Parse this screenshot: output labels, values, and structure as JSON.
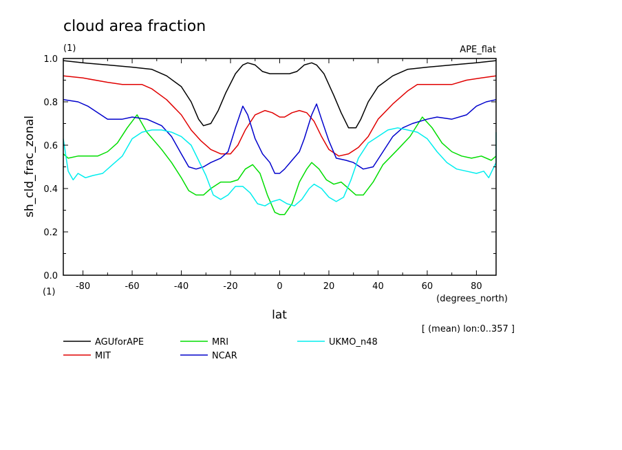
{
  "chart_data": {
    "type": "line",
    "title": "cloud area fraction",
    "units": "(1)",
    "experiment": "APE_flat",
    "xlabel": "lat",
    "xunits": "(degrees_north)",
    "ylabel": "sh_cld_frac_zonal",
    "yunits": "(1)",
    "note": "[ (mean) lon:0..357 ]",
    "xlim": [
      -88,
      88
    ],
    "ylim": [
      0,
      1
    ],
    "xticks": [
      -80,
      -60,
      -40,
      -20,
      0,
      20,
      40,
      60,
      80
    ],
    "xtick_labels": [
      "-80",
      "-60",
      "-40",
      "-20",
      "0",
      "20",
      "40",
      "60",
      "80"
    ],
    "yticks": [
      0,
      0.2,
      0.4,
      0.6,
      0.8,
      1.0
    ],
    "ytick_labels": [
      "0.0",
      "0.2",
      "0.4",
      "0.6",
      "0.8",
      "1.0"
    ],
    "grid": false,
    "legend_position": "bottom",
    "series": [
      {
        "name": "AGUforAPE",
        "color": "#000000",
        "points": [
          [
            -88,
            0.99
          ],
          [
            -80,
            0.98
          ],
          [
            -70,
            0.97
          ],
          [
            -60,
            0.96
          ],
          [
            -52,
            0.95
          ],
          [
            -46,
            0.92
          ],
          [
            -40,
            0.87
          ],
          [
            -36,
            0.8
          ],
          [
            -33,
            0.72
          ],
          [
            -31,
            0.69
          ],
          [
            -28,
            0.7
          ],
          [
            -25,
            0.76
          ],
          [
            -22,
            0.84
          ],
          [
            -18,
            0.93
          ],
          [
            -15,
            0.97
          ],
          [
            -13,
            0.98
          ],
          [
            -10,
            0.97
          ],
          [
            -7,
            0.94
          ],
          [
            -4,
            0.93
          ],
          [
            0,
            0.93
          ],
          [
            4,
            0.93
          ],
          [
            7,
            0.94
          ],
          [
            10,
            0.97
          ],
          [
            13,
            0.98
          ],
          [
            15,
            0.97
          ],
          [
            18,
            0.93
          ],
          [
            22,
            0.83
          ],
          [
            25,
            0.75
          ],
          [
            28,
            0.68
          ],
          [
            31,
            0.68
          ],
          [
            33,
            0.72
          ],
          [
            36,
            0.8
          ],
          [
            40,
            0.87
          ],
          [
            46,
            0.92
          ],
          [
            52,
            0.95
          ],
          [
            60,
            0.96
          ],
          [
            70,
            0.97
          ],
          [
            80,
            0.98
          ],
          [
            88,
            0.99
          ]
        ]
      },
      {
        "name": "MIT",
        "color": "#e00000",
        "points": [
          [
            -88,
            0.92
          ],
          [
            -80,
            0.91
          ],
          [
            -70,
            0.89
          ],
          [
            -64,
            0.88
          ],
          [
            -56,
            0.88
          ],
          [
            -52,
            0.86
          ],
          [
            -46,
            0.81
          ],
          [
            -40,
            0.74
          ],
          [
            -36,
            0.67
          ],
          [
            -32,
            0.62
          ],
          [
            -28,
            0.58
          ],
          [
            -24,
            0.56
          ],
          [
            -20,
            0.56
          ],
          [
            -17,
            0.6
          ],
          [
            -14,
            0.67
          ],
          [
            -10,
            0.74
          ],
          [
            -6,
            0.76
          ],
          [
            -3,
            0.75
          ],
          [
            0,
            0.73
          ],
          [
            2,
            0.73
          ],
          [
            5,
            0.75
          ],
          [
            8,
            0.76
          ],
          [
            11,
            0.75
          ],
          [
            14,
            0.71
          ],
          [
            17,
            0.64
          ],
          [
            20,
            0.58
          ],
          [
            24,
            0.55
          ],
          [
            28,
            0.56
          ],
          [
            32,
            0.59
          ],
          [
            36,
            0.64
          ],
          [
            40,
            0.72
          ],
          [
            46,
            0.79
          ],
          [
            52,
            0.85
          ],
          [
            56,
            0.88
          ],
          [
            64,
            0.88
          ],
          [
            70,
            0.88
          ],
          [
            76,
            0.9
          ],
          [
            82,
            0.91
          ],
          [
            88,
            0.92
          ]
        ]
      },
      {
        "name": "MRI",
        "color": "#00dd00",
        "points": [
          [
            -88,
            0.56
          ],
          [
            -86,
            0.54
          ],
          [
            -82,
            0.55
          ],
          [
            -78,
            0.55
          ],
          [
            -74,
            0.55
          ],
          [
            -70,
            0.57
          ],
          [
            -66,
            0.61
          ],
          [
            -62,
            0.68
          ],
          [
            -58,
            0.74
          ],
          [
            -54,
            0.66
          ],
          [
            -48,
            0.58
          ],
          [
            -44,
            0.52
          ],
          [
            -40,
            0.45
          ],
          [
            -37,
            0.39
          ],
          [
            -34,
            0.37
          ],
          [
            -31,
            0.37
          ],
          [
            -28,
            0.4
          ],
          [
            -24,
            0.43
          ],
          [
            -20,
            0.43
          ],
          [
            -17,
            0.44
          ],
          [
            -14,
            0.49
          ],
          [
            -11,
            0.51
          ],
          [
            -8,
            0.47
          ],
          [
            -5,
            0.37
          ],
          [
            -2,
            0.29
          ],
          [
            0,
            0.28
          ],
          [
            2,
            0.28
          ],
          [
            5,
            0.33
          ],
          [
            8,
            0.43
          ],
          [
            11,
            0.49
          ],
          [
            13,
            0.52
          ],
          [
            16,
            0.49
          ],
          [
            19,
            0.44
          ],
          [
            22,
            0.42
          ],
          [
            25,
            0.43
          ],
          [
            28,
            0.4
          ],
          [
            31,
            0.37
          ],
          [
            34,
            0.37
          ],
          [
            38,
            0.43
          ],
          [
            42,
            0.51
          ],
          [
            48,
            0.58
          ],
          [
            53,
            0.64
          ],
          [
            58,
            0.73
          ],
          [
            62,
            0.68
          ],
          [
            66,
            0.61
          ],
          [
            70,
            0.57
          ],
          [
            74,
            0.55
          ],
          [
            78,
            0.54
          ],
          [
            82,
            0.55
          ],
          [
            86,
            0.53
          ],
          [
            88,
            0.55
          ]
        ]
      },
      {
        "name": "NCAR",
        "color": "#0000cc",
        "points": [
          [
            -88,
            0.81
          ],
          [
            -82,
            0.8
          ],
          [
            -78,
            0.78
          ],
          [
            -74,
            0.75
          ],
          [
            -70,
            0.72
          ],
          [
            -64,
            0.72
          ],
          [
            -60,
            0.73
          ],
          [
            -54,
            0.72
          ],
          [
            -48,
            0.69
          ],
          [
            -44,
            0.64
          ],
          [
            -40,
            0.56
          ],
          [
            -37,
            0.5
          ],
          [
            -34,
            0.49
          ],
          [
            -31,
            0.5
          ],
          [
            -28,
            0.52
          ],
          [
            -24,
            0.54
          ],
          [
            -21,
            0.57
          ],
          [
            -18,
            0.68
          ],
          [
            -15,
            0.78
          ],
          [
            -13,
            0.74
          ],
          [
            -10,
            0.63
          ],
          [
            -7,
            0.56
          ],
          [
            -4,
            0.52
          ],
          [
            -2,
            0.47
          ],
          [
            0,
            0.47
          ],
          [
            2,
            0.49
          ],
          [
            5,
            0.53
          ],
          [
            8,
            0.57
          ],
          [
            10,
            0.63
          ],
          [
            13,
            0.74
          ],
          [
            15,
            0.79
          ],
          [
            17,
            0.72
          ],
          [
            20,
            0.62
          ],
          [
            23,
            0.54
          ],
          [
            27,
            0.53
          ],
          [
            30,
            0.52
          ],
          [
            34,
            0.49
          ],
          [
            38,
            0.5
          ],
          [
            42,
            0.57
          ],
          [
            46,
            0.64
          ],
          [
            50,
            0.68
          ],
          [
            54,
            0.7
          ],
          [
            60,
            0.72
          ],
          [
            64,
            0.73
          ],
          [
            70,
            0.72
          ],
          [
            76,
            0.74
          ],
          [
            80,
            0.78
          ],
          [
            84,
            0.8
          ],
          [
            88,
            0.81
          ]
        ]
      },
      {
        "name": "UKMO_n48",
        "color": "#00eeee",
        "points": [
          [
            -88,
            0.63
          ],
          [
            -86,
            0.48
          ],
          [
            -84,
            0.44
          ],
          [
            -82,
            0.47
          ],
          [
            -79,
            0.45
          ],
          [
            -76,
            0.46
          ],
          [
            -72,
            0.47
          ],
          [
            -68,
            0.51
          ],
          [
            -64,
            0.55
          ],
          [
            -60,
            0.63
          ],
          [
            -56,
            0.66
          ],
          [
            -52,
            0.67
          ],
          [
            -48,
            0.67
          ],
          [
            -44,
            0.66
          ],
          [
            -40,
            0.64
          ],
          [
            -36,
            0.6
          ],
          [
            -33,
            0.53
          ],
          [
            -30,
            0.46
          ],
          [
            -27,
            0.37
          ],
          [
            -24,
            0.35
          ],
          [
            -21,
            0.37
          ],
          [
            -18,
            0.41
          ],
          [
            -15,
            0.41
          ],
          [
            -12,
            0.38
          ],
          [
            -9,
            0.33
          ],
          [
            -6,
            0.32
          ],
          [
            -3,
            0.34
          ],
          [
            0,
            0.35
          ],
          [
            3,
            0.33
          ],
          [
            6,
            0.32
          ],
          [
            9,
            0.35
          ],
          [
            12,
            0.4
          ],
          [
            14,
            0.42
          ],
          [
            17,
            0.4
          ],
          [
            20,
            0.36
          ],
          [
            23,
            0.34
          ],
          [
            26,
            0.36
          ],
          [
            29,
            0.44
          ],
          [
            32,
            0.54
          ],
          [
            36,
            0.61
          ],
          [
            40,
            0.64
          ],
          [
            44,
            0.67
          ],
          [
            48,
            0.68
          ],
          [
            52,
            0.67
          ],
          [
            56,
            0.66
          ],
          [
            60,
            0.63
          ],
          [
            64,
            0.57
          ],
          [
            68,
            0.52
          ],
          [
            72,
            0.49
          ],
          [
            76,
            0.48
          ],
          [
            80,
            0.47
          ],
          [
            83,
            0.48
          ],
          [
            85,
            0.45
          ],
          [
            88,
            0.52
          ],
          [
            89,
            0.66
          ]
        ]
      }
    ]
  }
}
